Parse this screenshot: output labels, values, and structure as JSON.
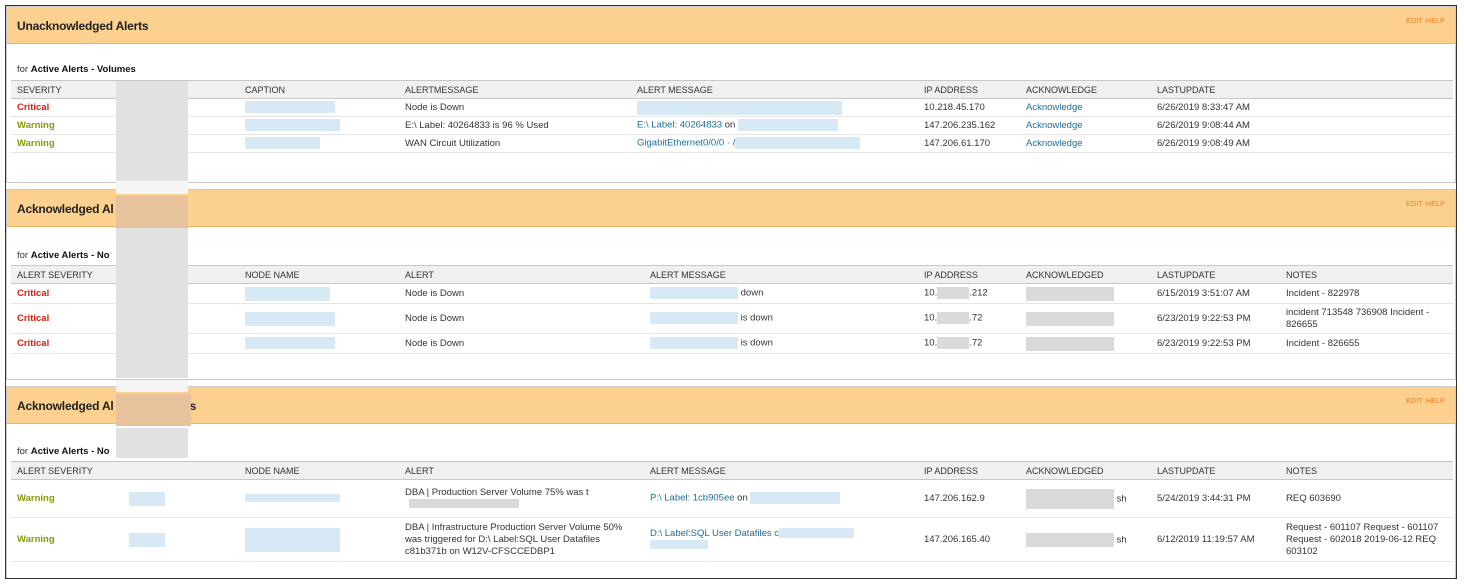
{
  "header_links": {
    "edit": "EDIT",
    "help": "HELP"
  },
  "panel1": {
    "title": "Unacknowledged Alerts",
    "for_prefix": "for",
    "for_bold": "Active Alerts - Volumes",
    "columns": [
      "SEVERITY",
      "",
      "CAPTION",
      "ALERTMESSAGE",
      "ALERT MESSAGE",
      "IP ADDRESS",
      "ACKNOWLEDGE",
      "LASTUPDATE"
    ],
    "rows": [
      {
        "severity": "Critical",
        "level": "crit",
        "alert": "Node is Down",
        "msg_link": "",
        "msg_text": "",
        "ip": "10.218.45.170",
        "ack": "Acknowledge",
        "last": "6/26/2019 8:33:47 AM"
      },
      {
        "severity": "Warning",
        "level": "warn",
        "alert": "E:\\ Label: 40264833 is 96 % Used",
        "msg_link": "E:\\ Label: 40264833",
        "msg_text": "on",
        "ip": "147.206.235.162",
        "ack": "Acknowledge",
        "last": "6/26/2019 9:08:44 AM"
      },
      {
        "severity": "Warning",
        "level": "warn",
        "alert": "WAN Circuit Utilization",
        "msg_link": "GigabitEthernet0/0/0 · /",
        "msg_text": "",
        "ip": "147.206.61.170",
        "ack": "Acknowledge",
        "last": "6/26/2019 9:08:49 AM"
      }
    ]
  },
  "panel2": {
    "title": "Acknowledged Al",
    "for_prefix": "for",
    "for_bold": "Active Alerts - No",
    "columns": [
      "ALERT SEVERITY",
      "",
      "NODE NAME",
      "ALERT",
      "ALERT MESSAGE",
      "IP ADDRESS",
      "ACKNOWLEDGED",
      "LASTUPDATE",
      "NOTES"
    ],
    "rows": [
      {
        "severity": "Critical",
        "level": "crit",
        "alert": "Node is Down",
        "msg_tail": "down",
        "ip_a": "10.",
        "ip_b": ".212",
        "last": "6/15/2019 3:51:07 AM",
        "notes": "Incident - 822978"
      },
      {
        "severity": "Critical",
        "level": "crit",
        "alert": "Node is Down",
        "msg_tail": "is down",
        "ip_a": "10.",
        "ip_b": ".72",
        "last": "6/23/2019 9:22:53 PM",
        "notes": "incident 713548 736908 Incident - 826655"
      },
      {
        "severity": "Critical",
        "level": "crit",
        "alert": "Node is Down",
        "msg_tail": "is down",
        "ip_a": "10.",
        "ip_b": ".72",
        "last": "6/23/2019 9:22:53 PM",
        "notes": "Incident - 826655"
      }
    ]
  },
  "panel3": {
    "title": "Acknowledged Al",
    "title_tail": "s",
    "for_prefix": "for",
    "for_bold": "Active Alerts - No",
    "columns": [
      "ALERT SEVERITY",
      "",
      "NODE NAME",
      "ALERT",
      "ALERT MESSAGE",
      "IP ADDRESS",
      "ACKNOWLEDGED",
      "LASTUPDATE",
      "NOTES"
    ],
    "rows": [
      {
        "severity": "Warning",
        "level": "warn",
        "alert": "DBA | Production Server Volume 75% was t",
        "alert_tail": "",
        "msg_link": "P:\\ Label: 1cb905ee",
        "msg_text": "on",
        "ip": "147.206.162.9",
        "ack_tail": "sh",
        "last": "5/24/2019 3:44:31 PM",
        "notes": "REQ 603690"
      },
      {
        "severity": "Warning",
        "level": "warn",
        "alert": "DBA | Infrastructure Production Server Volume 50% was triggered for D:\\ Label:SQL User Datafiles c81b371b on W12V-CFSCCEDBP1",
        "alert_tail": "",
        "msg_link": "D:\\ Label:SQL User Datafiles c",
        "msg_text": "",
        "ip": "147.206.165.40",
        "ack_tail": "sh",
        "last": "6/12/2019 11:19:57 AM",
        "notes": "Request - 601107 Request - 601107 Request - 602018 2019-06-12 REQ 603102"
      }
    ]
  },
  "colors": {
    "header": "#fcd08f",
    "critical": "#d8200f",
    "warning": "#8a9a08",
    "link": "#1b6e9e",
    "edit_help": "#f07b1a"
  }
}
